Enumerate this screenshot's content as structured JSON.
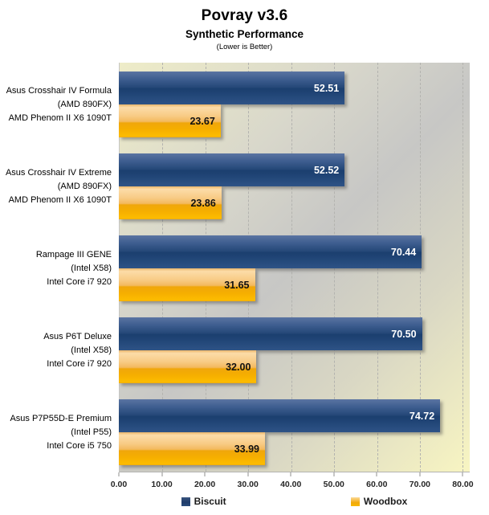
{
  "title": "Povray v3.6",
  "subtitle": "Synthetic Performance",
  "note": "(Lower is Better)",
  "colors": {
    "biscuit": "#1f4374",
    "woodbox": "#f5ae00",
    "plot_bg_yellow": "#f3f0c5",
    "plot_bg_gray": "#c7c7c5"
  },
  "chart_data": {
    "type": "bar",
    "orientation": "horizontal",
    "title": "Povray v3.6",
    "subtitle": "Synthetic Performance",
    "annotation": "(Lower is Better)",
    "categories": [
      "Asus Crosshair IV Formula (AMD 890FX) AMD Phenom II X6 1090T",
      "Asus Crosshair IV Extreme (AMD 890FX) AMD Phenom II X6 1090T",
      "Rampage III GENE (Intel X58) Intel Core i7 920",
      "Asus P6T Deluxe (Intel X58) Intel Core i7 920",
      "Asus P7P55D-E Premium (Intel P55) Intel Core i5 750"
    ],
    "series": [
      {
        "name": "Biscuit",
        "color": "#1f4374",
        "values": [
          52.51,
          52.52,
          70.44,
          70.5,
          74.72
        ]
      },
      {
        "name": "Woodbox",
        "color": "#f5ae00",
        "values": [
          23.67,
          23.86,
          31.65,
          32.0,
          33.99
        ]
      }
    ],
    "groups": [
      {
        "label_lines": [
          "Asus Crosshair IV Formula",
          "(AMD 890FX)",
          "AMD Phenom II X6 1090T"
        ],
        "biscuit": 52.51,
        "woodbox": 23.67
      },
      {
        "label_lines": [
          "Asus Crosshair IV Extreme",
          "(AMD 890FX)",
          "AMD Phenom II X6 1090T"
        ],
        "biscuit": 52.52,
        "woodbox": 23.86
      },
      {
        "label_lines": [
          "Rampage III GENE",
          "(Intel X58)",
          "Intel Core i7 920"
        ],
        "biscuit": 70.44,
        "woodbox": 31.65
      },
      {
        "label_lines": [
          "Asus P6T Deluxe",
          "(Intel X58)",
          "Intel Core i7 920"
        ],
        "biscuit": 70.5,
        "woodbox": 32.0
      },
      {
        "label_lines": [
          "Asus P7P55D-E Premium",
          "(Intel P55)",
          "Intel Core i5 750"
        ],
        "biscuit": 74.72,
        "woodbox": 33.99
      }
    ],
    "xlim": [
      0,
      80
    ],
    "xticks": [
      "0.00",
      "10.00",
      "20.00",
      "30.00",
      "40.00",
      "50.00",
      "60.00",
      "70.00",
      "80.00"
    ],
    "grid": "vertical-dashed",
    "legend_position": "bottom",
    "value_labels": "inside-end"
  }
}
